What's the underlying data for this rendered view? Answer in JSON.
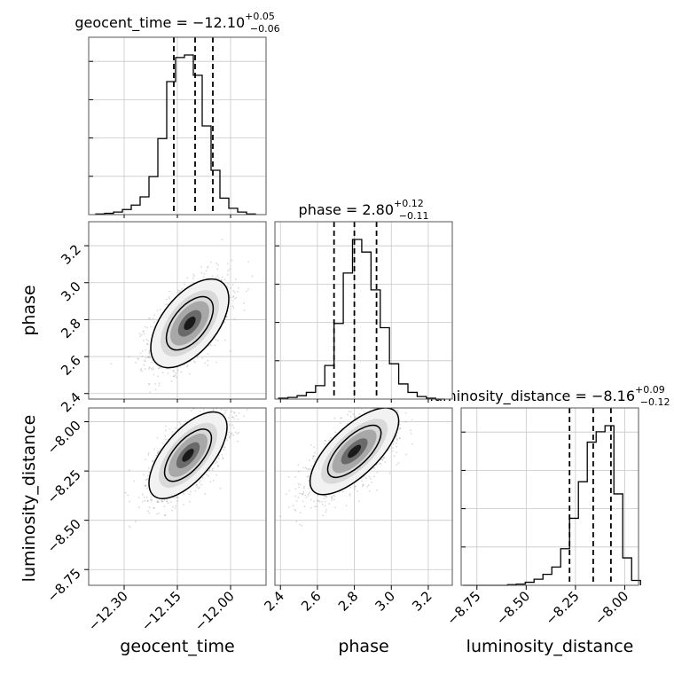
{
  "chart_data": {
    "type": "corner",
    "parameters": [
      "geocent_time",
      "phase",
      "luminosity_distance"
    ],
    "axis_ranges": {
      "geocent_time": [
        -12.4,
        -11.9
      ],
      "phase": [
        2.37,
        3.33
      ],
      "luminosity_distance": [
        -8.83,
        -7.93
      ]
    },
    "axis_ticks": {
      "geocent_time": {
        "values": [
          -12.3,
          -12.15,
          -12.0
        ],
        "labels": [
          "−12.30",
          "−12.15",
          "−12.00"
        ]
      },
      "phase": {
        "values": [
          2.4,
          2.6,
          2.8,
          3.0,
          3.2
        ],
        "labels": [
          "2.4",
          "2.6",
          "2.8",
          "3.0",
          "3.2"
        ]
      },
      "luminosity_distance": {
        "values": [
          -8.75,
          -8.5,
          -8.25,
          -8.0
        ],
        "labels": [
          "−8.75",
          "−8.50",
          "−8.25",
          "−8.00"
        ]
      }
    },
    "titles": [
      {
        "param": "geocent_time",
        "prefix": "geocent_time = −12.10",
        "plus": "+0.05",
        "minus": "−0.06"
      },
      {
        "param": "phase",
        "prefix": "phase = 2.80",
        "plus": "+0.12",
        "minus": "−0.11"
      },
      {
        "param": "luminosity_distance",
        "prefix": "luminosity_distance = −8.16",
        "plus": "+0.09",
        "minus": "−0.12"
      }
    ],
    "quantiles": {
      "geocent_time": [
        -12.16,
        -12.1,
        -12.05
      ],
      "phase": [
        2.69,
        2.8,
        2.92
      ],
      "luminosity_distance": [
        -8.28,
        -8.16,
        -8.07
      ]
    },
    "histograms": {
      "geocent_time": {
        "edges": [
          -12.38,
          -12.355,
          -12.33,
          -12.305,
          -12.28,
          -12.255,
          -12.23,
          -12.205,
          -12.18,
          -12.155,
          -12.13,
          -12.105,
          -12.08,
          -12.055,
          -12.03,
          -12.005,
          -11.98,
          -11.955,
          -11.93
        ],
        "counts": [
          1,
          2,
          4,
          8,
          15,
          28,
          60,
          120,
          210,
          248,
          252,
          220,
          140,
          70,
          26,
          10,
          4,
          1
        ]
      },
      "phase": {
        "edges": [
          2.39,
          2.44,
          2.49,
          2.54,
          2.59,
          2.64,
          2.69,
          2.74,
          2.79,
          2.84,
          2.89,
          2.94,
          2.99,
          3.04,
          3.09,
          3.14,
          3.19,
          3.24,
          3.29
        ],
        "counts": [
          1,
          2,
          4,
          8,
          16,
          40,
          90,
          150,
          190,
          175,
          130,
          85,
          42,
          18,
          8,
          3,
          1,
          0
        ]
      },
      "luminosity_distance": {
        "edges": [
          -8.82,
          -8.775,
          -8.73,
          -8.685,
          -8.64,
          -8.595,
          -8.55,
          -8.505,
          -8.46,
          -8.415,
          -8.37,
          -8.325,
          -8.28,
          -8.235,
          -8.19,
          -8.145,
          -8.1,
          -8.055,
          -8.01,
          -7.965,
          -7.92
        ],
        "counts": [
          0,
          0,
          0,
          0,
          0,
          1,
          2,
          5,
          10,
          18,
          30,
          60,
          110,
          170,
          235,
          252,
          262,
          150,
          45,
          8
        ]
      }
    },
    "correlations": [
      {
        "x": "geocent_time",
        "y": "phase",
        "center": [
          -12.115,
          2.78
        ],
        "sx": 0.055,
        "sy": 0.12,
        "rho": 0.55
      },
      {
        "x": "geocent_time",
        "y": "luminosity_distance",
        "center": [
          -12.12,
          -8.17
        ],
        "sx": 0.055,
        "sy": 0.11,
        "rho": 0.65
      },
      {
        "x": "phase",
        "y": "luminosity_distance",
        "center": [
          2.8,
          -8.15
        ],
        "sx": 0.12,
        "sy": 0.11,
        "rho": 0.7
      }
    ],
    "grid": true
  }
}
